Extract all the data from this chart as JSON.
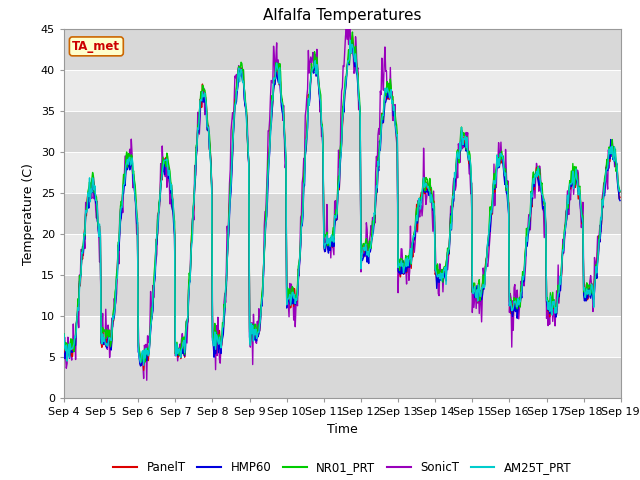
{
  "title": "Alfalfa Temperatures",
  "xlabel": "Time",
  "ylabel": "Temperature (C)",
  "ylim": [
    0,
    45
  ],
  "annotation": "TA_met",
  "xtick_labels": [
    "Sep 4",
    "Sep 5",
    "Sep 6",
    "Sep 7",
    "Sep 8",
    "Sep 9",
    "Sep 10",
    "Sep 11",
    "Sep 12",
    "Sep 13",
    "Sep 14",
    "Sep 15",
    "Sep 16",
    "Sep 17",
    "Sep 18",
    "Sep 19"
  ],
  "series_colors": {
    "PanelT": "#dd0000",
    "HMP60": "#0000dd",
    "NR01_PRT": "#00cc00",
    "SonicT": "#9900bb",
    "AM25T_PRT": "#00cccc"
  },
  "lw": 1.0,
  "bg_color": "#ffffff",
  "band_light": "#ebebeb",
  "band_dark": "#d8d8d8",
  "title_fontsize": 11,
  "axis_fontsize": 9,
  "tick_fontsize": 8
}
